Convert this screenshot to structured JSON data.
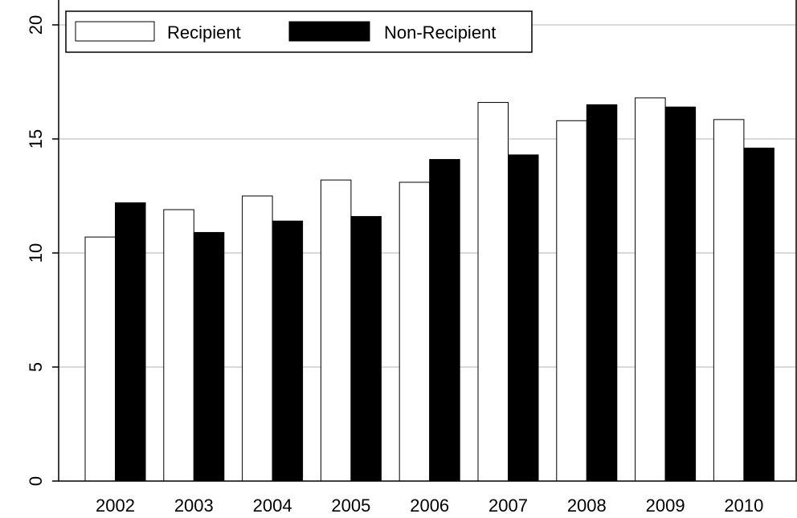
{
  "chart_data": {
    "type": "bar",
    "title": "",
    "xlabel": "",
    "ylabel": "",
    "categories": [
      "2002",
      "2003",
      "2004",
      "2005",
      "2006",
      "2007",
      "2008",
      "2009",
      "2010"
    ],
    "series": [
      {
        "name": "Recipient",
        "values": [
          10.7,
          11.9,
          12.5,
          13.2,
          13.1,
          16.6,
          15.8,
          16.8,
          15.85
        ],
        "color": "#ffffff"
      },
      {
        "name": "Non-Recipient",
        "values": [
          12.2,
          10.9,
          11.4,
          11.6,
          14.1,
          14.3,
          16.5,
          16.4,
          14.6
        ],
        "color": "#000000"
      }
    ],
    "ylim": [
      0,
      20
    ],
    "yticks": [
      "0",
      "5",
      "10",
      "15",
      "20"
    ],
    "grid": true,
    "legend_position": "top-left",
    "gridline_color": "#d9d9d9"
  }
}
